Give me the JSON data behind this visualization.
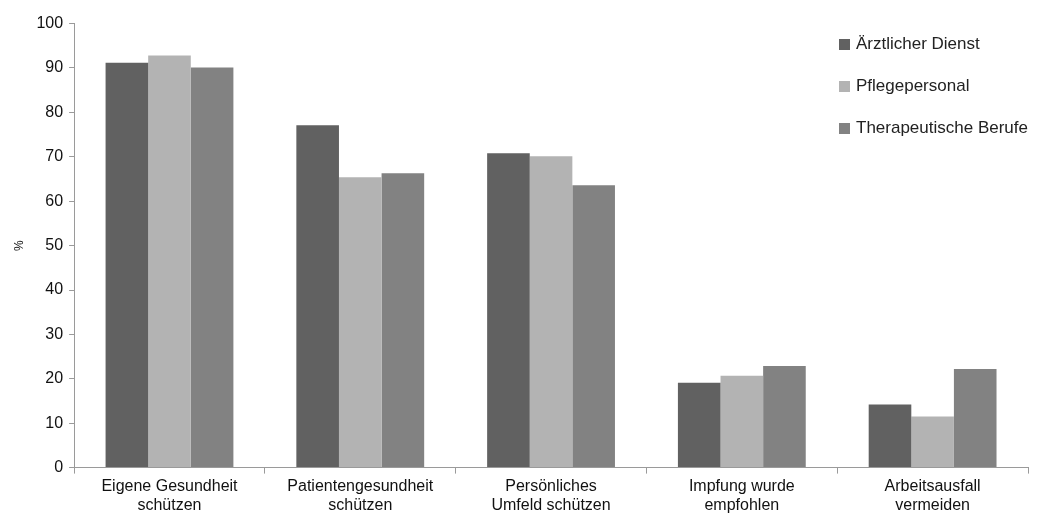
{
  "chart_data": {
    "type": "bar",
    "ylabel": "%",
    "categories": [
      "Eigene Gesundheit schützen",
      "Patientengesundheit schützen",
      "Persönliches Umfeld schützen",
      "Impfung wurde empfohlen",
      "Arbeitsausfall vermeiden"
    ],
    "series": [
      {
        "name": "Ärztlicher Dienst",
        "color": "#616161",
        "values": [
          91.2,
          77.1,
          70.8,
          19.1,
          14.2
        ]
      },
      {
        "name": "Pflegepersonal",
        "color": "#b3b3b3",
        "values": [
          92.8,
          65.4,
          70.1,
          20.7,
          11.5
        ]
      },
      {
        "name": "Therapeutische Berufe",
        "color": "#828282",
        "values": [
          90.1,
          66.3,
          63.6,
          22.9,
          22.2
        ]
      }
    ],
    "ylim": [
      0,
      100
    ],
    "yticks": [
      0,
      10,
      20,
      30,
      40,
      50,
      60,
      70,
      80,
      90,
      100
    ],
    "grid": false,
    "legend": "top right"
  }
}
